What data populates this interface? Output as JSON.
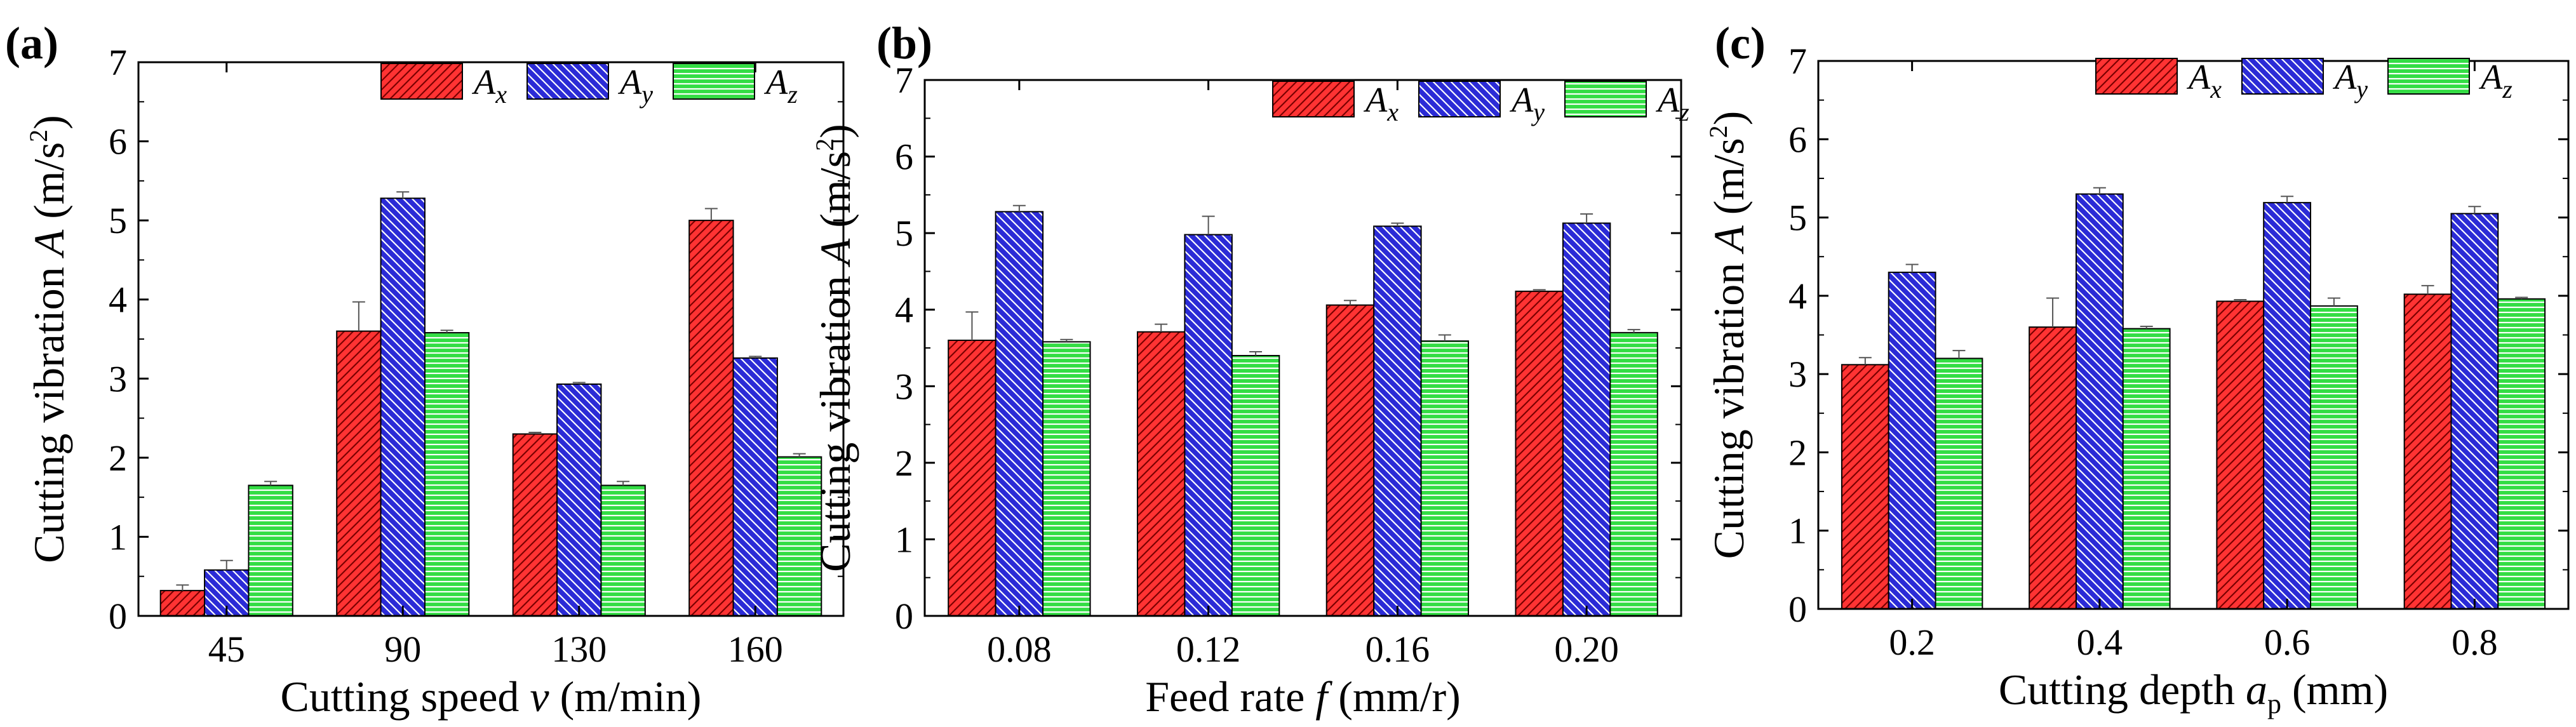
{
  "chart_data": [
    {
      "type": "bar",
      "panel_label": "(a)",
      "categories": [
        "45",
        "90",
        "130",
        "160"
      ],
      "series": [
        {
          "name": "Ax",
          "values": [
            0.32,
            3.6,
            2.3,
            5.0
          ],
          "errors": [
            0.07,
            0.37,
            0.02,
            0.15
          ]
        },
        {
          "name": "Ay",
          "values": [
            0.58,
            5.28,
            2.93,
            3.26
          ],
          "errors": [
            0.12,
            0.08,
            0.02,
            0.02
          ]
        },
        {
          "name": "Az",
          "values": [
            1.65,
            3.58,
            1.65,
            2.01
          ],
          "errors": [
            0.05,
            0.03,
            0.05,
            0.04
          ]
        }
      ],
      "xlabel": {
        "pre": "Cutting speed ",
        "var": "v",
        "sub": "",
        "post": " (m/min)"
      },
      "ylabel": {
        "pre": "Cutting vibration ",
        "var": "A",
        "post": " (m/s",
        "sup": "2",
        "end": ")"
      },
      "ylim": [
        0,
        7
      ],
      "yticks": [
        "0",
        "1",
        "2",
        "3",
        "4",
        "5",
        "6",
        "7"
      ],
      "legend_position": "top-right",
      "grid": false
    },
    {
      "type": "bar",
      "panel_label": "(b)",
      "categories": [
        "0.08",
        "0.12",
        "0.16",
        "0.20"
      ],
      "series": [
        {
          "name": "Ax",
          "values": [
            3.6,
            3.71,
            4.06,
            4.24
          ],
          "errors": [
            0.37,
            0.1,
            0.06,
            0.02
          ]
        },
        {
          "name": "Ay",
          "values": [
            5.28,
            4.98,
            5.09,
            5.13
          ],
          "errors": [
            0.08,
            0.24,
            0.04,
            0.12
          ]
        },
        {
          "name": "Az",
          "values": [
            3.58,
            3.4,
            3.59,
            3.7
          ],
          "errors": [
            0.03,
            0.05,
            0.08,
            0.04
          ]
        }
      ],
      "xlabel": {
        "pre": "Feed rate ",
        "var": "f",
        "sub": "",
        "post": " (mm/r)"
      },
      "ylabel": {
        "pre": "Cutting vibration ",
        "var": "A",
        "post": " (m/s",
        "sup": "2",
        "end": ")"
      },
      "ylim": [
        0,
        7
      ],
      "yticks": [
        "0",
        "1",
        "2",
        "3",
        "4",
        "5",
        "6",
        "7"
      ],
      "legend_position": "top-right",
      "grid": false
    },
    {
      "type": "bar",
      "panel_label": "(c)",
      "categories": [
        "0.2",
        "0.4",
        "0.6",
        "0.8"
      ],
      "series": [
        {
          "name": "Ax",
          "values": [
            3.12,
            3.6,
            3.93,
            4.02
          ],
          "errors": [
            0.09,
            0.37,
            0.02,
            0.11
          ]
        },
        {
          "name": "Ay",
          "values": [
            4.3,
            5.3,
            5.19,
            5.05
          ],
          "errors": [
            0.1,
            0.08,
            0.08,
            0.09
          ]
        },
        {
          "name": "Az",
          "values": [
            3.2,
            3.58,
            3.87,
            3.96
          ],
          "errors": [
            0.1,
            0.03,
            0.1,
            0.02
          ]
        }
      ],
      "xlabel": {
        "pre": "Cutting depth ",
        "var": "a",
        "sub": "p",
        "post": " (mm)"
      },
      "ylabel": {
        "pre": "Cutting vibration ",
        "var": "A",
        "post": " (m/s",
        "sup": "2",
        "end": ")"
      },
      "ylim": [
        0,
        7
      ],
      "yticks": [
        "0",
        "1",
        "2",
        "3",
        "4",
        "5",
        "6",
        "7"
      ],
      "legend_position": "top-right",
      "grid": false
    }
  ],
  "legend": [
    {
      "letter": "A",
      "sub": "x",
      "color": "#ff3333",
      "hatch": "diag"
    },
    {
      "letter": "A",
      "sub": "y",
      "color": "#2b2bd6",
      "hatch": "diag"
    },
    {
      "letter": "A",
      "sub": "z",
      "color": "#33dd44",
      "hatch": "horiz"
    }
  ],
  "colors": {
    "ax": "#ff3333",
    "ay": "#2b2bd6",
    "az": "#33dd44",
    "axis": "#000000"
  }
}
